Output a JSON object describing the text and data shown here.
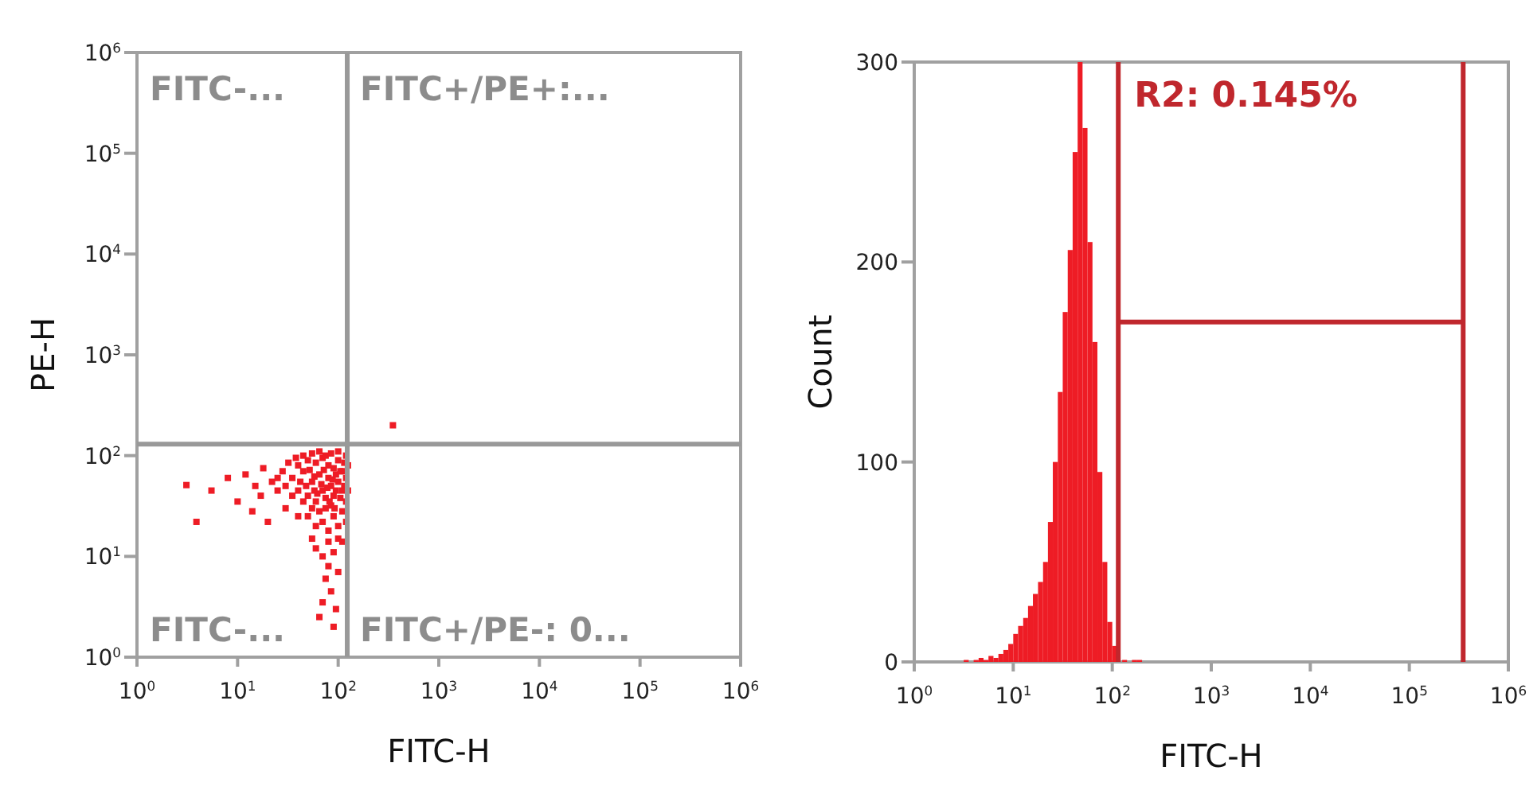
{
  "chart_data": [
    {
      "type": "scatter",
      "xlabel": "FITC-H",
      "ylabel": "PE-H",
      "log": "xy",
      "xlim": [
        1,
        1000000
      ],
      "ylim": [
        1,
        1000000
      ],
      "xticks": [
        {
          "value": 1,
          "label": "10$^{0}$"
        },
        {
          "value": 10,
          "label": "10$^{1}$"
        },
        {
          "value": 100,
          "label": "10$^{2}$"
        },
        {
          "value": 1000,
          "label": "10$^{3}$"
        },
        {
          "value": 10000,
          "label": "10$^{4}$"
        },
        {
          "value": 100000,
          "label": "10$^{5}$"
        },
        {
          "value": 1000000,
          "label": "10$^{6}$"
        }
      ],
      "yticks": [
        {
          "value": 1,
          "label": "10$^{0}$"
        },
        {
          "value": 10,
          "label": "10$^{1}$"
        },
        {
          "value": 100,
          "label": "10$^{2}$"
        },
        {
          "value": 1000,
          "label": "10$^{3}$"
        },
        {
          "value": 10000,
          "label": "10$^{4}$"
        },
        {
          "value": 100000,
          "label": "10$^{5}$"
        },
        {
          "value": 1000000,
          "label": "10$^{6}$"
        }
      ],
      "marker": "square",
      "ref_lines": [
        {
          "axis": "x",
          "value": 123,
          "color": "#999999"
        },
        {
          "axis": "y",
          "value": 130,
          "color": "#999999"
        }
      ],
      "annotations": [
        "FITC-...",
        "FITC+/PE+:...",
        "FITC-...",
        "FITC+/PE-: 0..."
      ],
      "series": [
        {
          "color": "#ee1c25",
          "x": [
            30,
            35,
            40,
            45,
            50,
            55,
            60,
            65,
            70,
            75,
            80,
            85,
            90,
            100,
            110,
            120,
            40,
            50,
            60,
            70,
            80,
            90,
            100,
            110,
            120,
            30,
            35,
            40,
            50,
            60,
            70,
            80,
            90,
            100,
            110,
            120,
            45,
            55,
            65,
            75,
            85,
            95,
            105,
            115,
            25,
            25,
            28,
            32,
            38,
            45,
            55,
            65,
            75,
            85,
            100,
            120,
            125,
            125,
            42,
            58,
            68,
            78,
            88,
            95,
            105,
            115,
            52,
            62,
            72,
            82,
            92,
            48,
            58,
            3.1,
            3.9,
            5.5,
            8,
            10,
            12,
            14,
            17,
            18,
            20,
            22,
            15,
            60,
            70,
            80,
            90,
            75,
            85,
            70,
            95,
            65,
            90,
            100,
            110,
            55,
            80,
            100,
            350
          ],
          "values": [
            50,
            60,
            45,
            70,
            40,
            55,
            35,
            65,
            45,
            30,
            60,
            50,
            40,
            55,
            45,
            35,
            80,
            90,
            85,
            95,
            80,
            75,
            90,
            70,
            60,
            30,
            40,
            25,
            25,
            20,
            22,
            18,
            25,
            20,
            28,
            22,
            35,
            30,
            28,
            38,
            32,
            45,
            38,
            50,
            45,
            60,
            70,
            85,
            95,
            100,
            105,
            110,
            100,
            105,
            110,
            100,
            80,
            45,
            55,
            62,
            52,
            48,
            58,
            65,
            70,
            85,
            72,
            42,
            72,
            35,
            30,
            50,
            45,
            51,
            22,
            45,
            60,
            35,
            65,
            28,
            40,
            75,
            22,
            55,
            50,
            12,
            10,
            8,
            11,
            6,
            4.5,
            3.5,
            3,
            2.5,
            2,
            7,
            14,
            15,
            14,
            15,
            200
          ]
        }
      ]
    },
    {
      "type": "histogram",
      "xlabel": "FITC-H",
      "ylabel": "Count",
      "log": "x",
      "xlim": [
        1,
        1000000
      ],
      "ylim": [
        0,
        300
      ],
      "xticks": [
        {
          "value": 1,
          "label": "10$^{0}$"
        },
        {
          "value": 10,
          "label": "10$^{1}$"
        },
        {
          "value": 100,
          "label": "10$^{2}$"
        },
        {
          "value": 1000,
          "label": "10$^{3}$"
        },
        {
          "value": 10000,
          "label": "10$^{4}$"
        },
        {
          "value": 100000,
          "label": "10$^{5}$"
        },
        {
          "value": 1000000,
          "label": "10$^{6}$"
        }
      ],
      "yticks": [
        0,
        100,
        200,
        300
      ],
      "color": "#ee1c25",
      "bins": [
        3.16,
        3.55,
        3.98,
        4.47,
        5.01,
        5.62,
        6.31,
        7.08,
        7.94,
        8.91,
        10,
        11.2,
        12.6,
        14.1,
        15.8,
        17.8,
        20,
        22.4,
        25.1,
        28.2,
        31.6,
        35.5,
        39.8,
        44.7,
        50.1,
        56.2,
        63.1,
        70.8,
        79.4,
        89.1,
        100,
        112,
        126,
        141,
        158,
        178,
        200
      ],
      "values": [
        1,
        0,
        1,
        2,
        1,
        3,
        2,
        4,
        6,
        9,
        14,
        18,
        22,
        28,
        34,
        40,
        50,
        70,
        100,
        135,
        175,
        206,
        255,
        300,
        267,
        210,
        160,
        95,
        50,
        20,
        8,
        null,
        1,
        0,
        1,
        1
      ],
      "series": [
        {
          "type": "line",
          "x": [
            115,
            350000
          ],
          "values": [
            170,
            170
          ],
          "color": "#c0272d"
        }
      ],
      "annotations": [
        "R2: 0.145%"
      ],
      "ref_lines": [
        {
          "axis": "x",
          "value": 115,
          "color": "#c0272d"
        },
        {
          "axis": "x",
          "value": 350000,
          "color": "#c0272d"
        }
      ]
    }
  ]
}
